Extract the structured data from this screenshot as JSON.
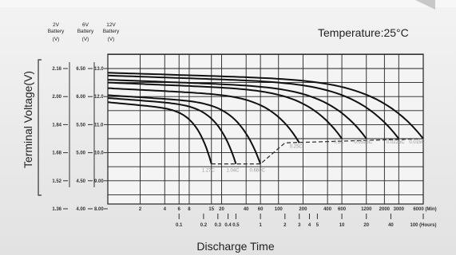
{
  "chart_data": {
    "type": "line",
    "title": "Temperature:25°C",
    "xlabel": "Discharge Time",
    "ylabel": "Terminal Voltage(V)",
    "x_scale": "log",
    "battery_headers": [
      {
        "top": "2V",
        "mid": "Battery",
        "unit": "(V)"
      },
      {
        "top": "6V",
        "mid": "Battery",
        "unit": "(V)"
      },
      {
        "top": "12V",
        "mid": "Battery",
        "unit": "(V)"
      }
    ],
    "y_ticks_2v": [
      "2.16",
      "2.00",
      "1.84",
      "1.68",
      "1.52",
      "1.36"
    ],
    "y_ticks_6v": [
      "6.50",
      "6.00",
      "5.50",
      "5.00",
      "4.50",
      "4.00"
    ],
    "y_ticks_12v": [
      "13.0",
      "12.0",
      "11.0",
      "10.0",
      "9.00",
      "8.00"
    ],
    "ylim": [
      7.5,
      13.5
    ],
    "x_ticks_min": [
      "2",
      "4",
      "6",
      "8",
      "15",
      "20",
      "40",
      "60",
      "100",
      "200",
      "400",
      "600",
      "1200",
      "2000",
      "3000",
      "6000 (Min)"
    ],
    "x_ticks_hours": [
      "0.1",
      "0.2",
      "0.3",
      "0.4",
      "0.5",
      "1",
      "2",
      "3",
      "4",
      "5",
      "10",
      "20",
      "40",
      "100 (Hours)"
    ],
    "series": [
      {
        "name": "1.27C",
        "x_min": [
          1,
          15
        ],
        "y": [
          11.8,
          9.6
        ]
      },
      {
        "name": "1.04C",
        "x_min": [
          1,
          30
        ],
        "y": [
          11.95,
          9.6
        ]
      },
      {
        "name": "0.669C",
        "x_min": [
          1,
          60
        ],
        "y": [
          12.05,
          9.6
        ]
      },
      {
        "name": "0.25C",
        "x_min": [
          1,
          180
        ],
        "y": [
          12.3,
          10.35
        ]
      },
      {
        "name": "0.1C",
        "x_min": [
          1,
          600
        ],
        "y": [
          12.5,
          10.5
        ]
      },
      {
        "name": "0.0525C",
        "x_min": [
          1,
          1200
        ],
        "y": [
          12.6,
          10.5
        ]
      },
      {
        "name": "0.0226C",
        "x_min": [
          1,
          3000
        ],
        "y": [
          12.75,
          10.5
        ]
      },
      {
        "name": "0.015C",
        "x_min": [
          1,
          6000
        ],
        "y": [
          12.85,
          10.5
        ]
      }
    ],
    "cutoff_voltage_line": {
      "style": "dashed",
      "x_min": [
        15,
        60,
        120,
        6000
      ],
      "y": [
        9.6,
        9.6,
        10.35,
        10.5
      ]
    },
    "grid": true
  }
}
